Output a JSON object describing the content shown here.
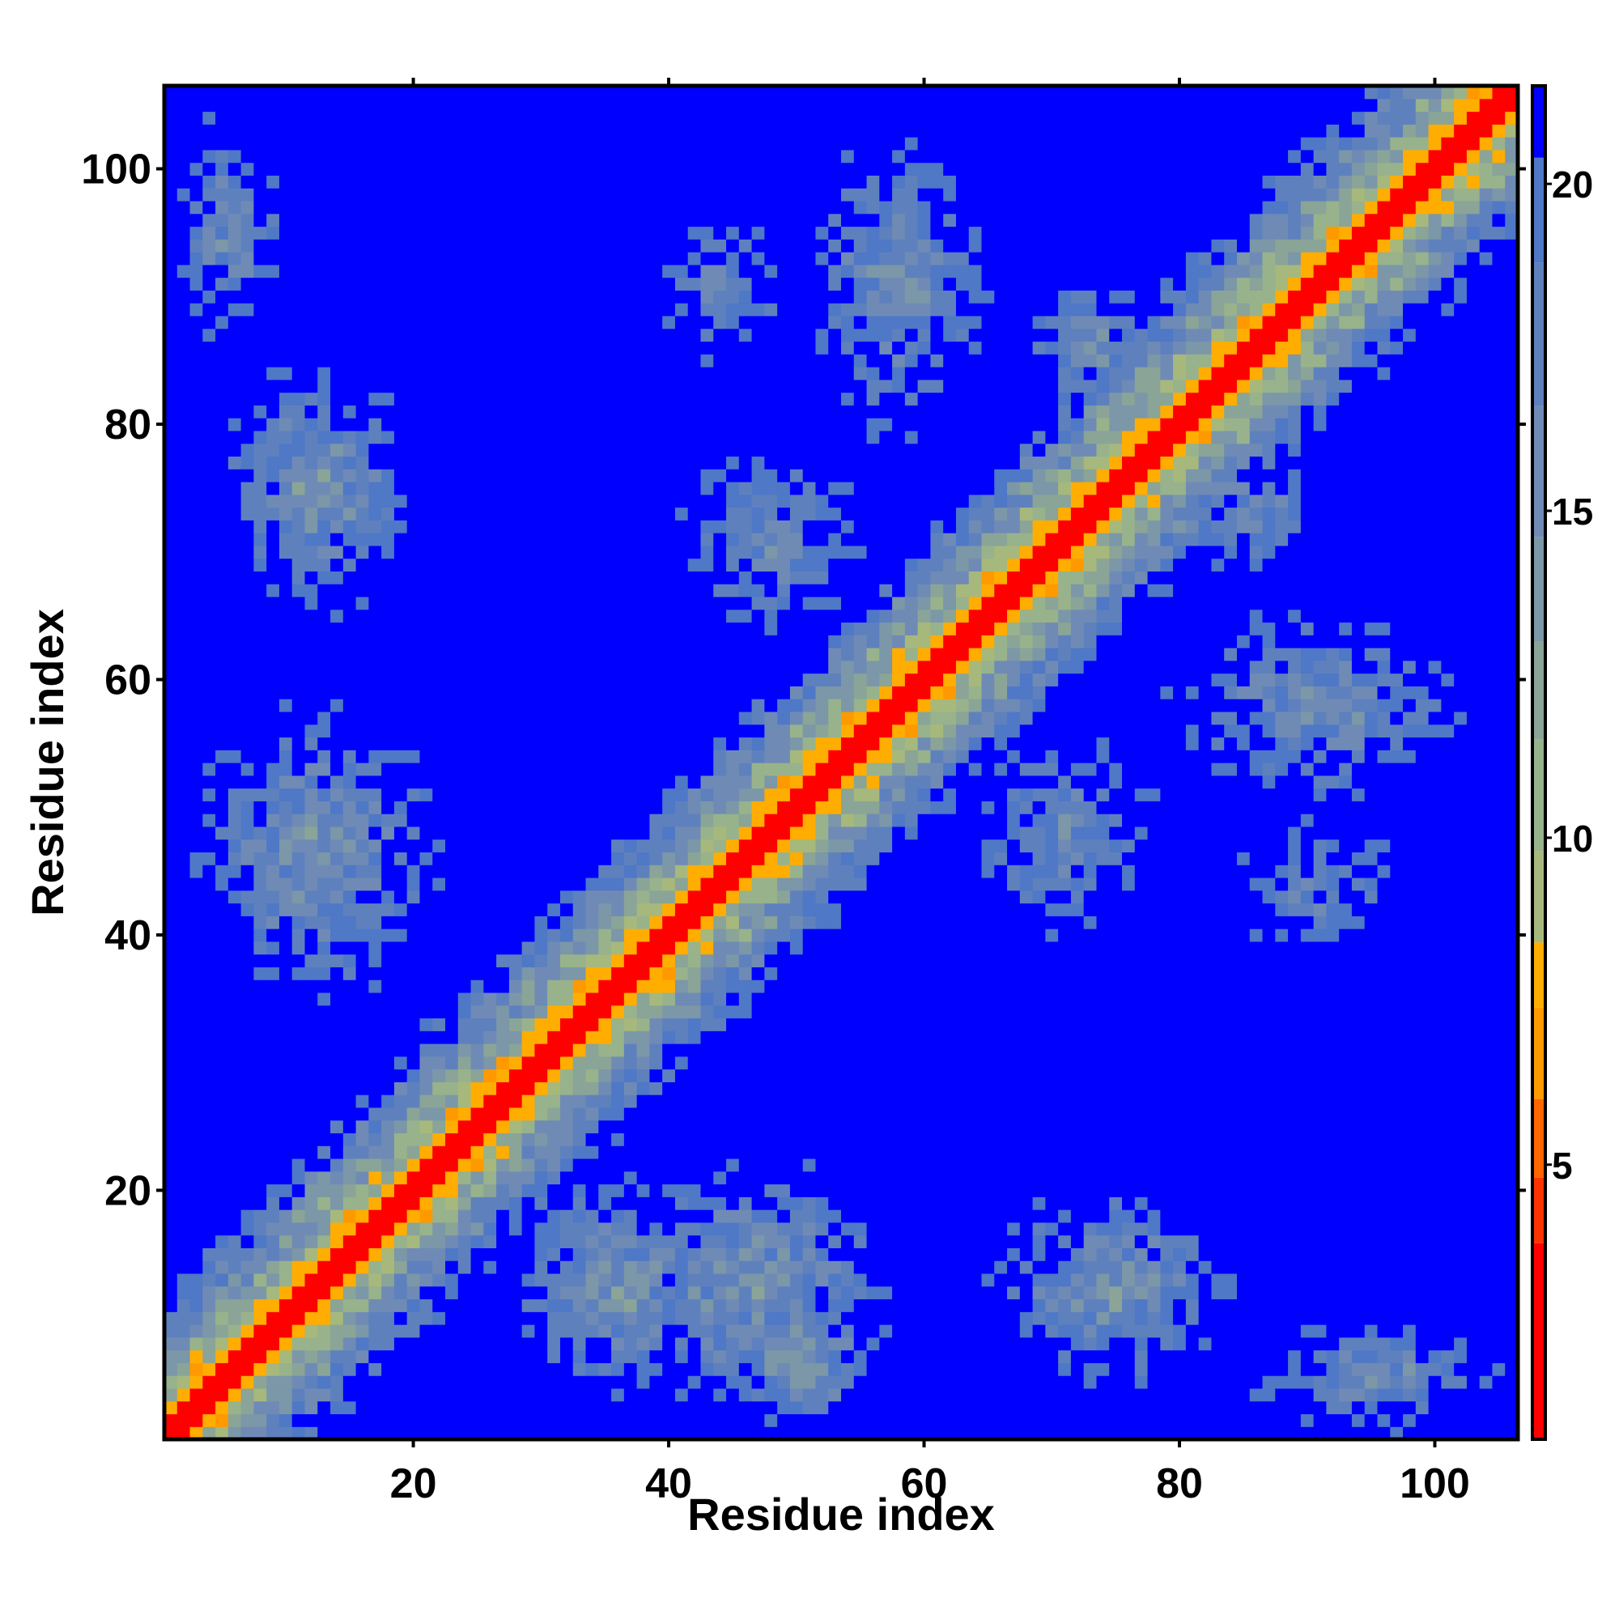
{
  "chart_data": {
    "type": "heatmap",
    "title": "",
    "xlabel": "Residue index",
    "ylabel": "Residue index",
    "n": 106,
    "xlim": [
      0.5,
      106.5
    ],
    "ylim": [
      0.5,
      106.5
    ],
    "x_ticks": [
      20,
      40,
      60,
      80,
      100
    ],
    "y_ticks": [
      20,
      40,
      60,
      80,
      100
    ],
    "x_tick_labels": [
      "20",
      "40",
      "60",
      "80",
      "100"
    ],
    "y_tick_labels": [
      "20",
      "40",
      "60",
      "80",
      "100"
    ],
    "colorbar": {
      "range": [
        0.8,
        21.5
      ],
      "ticks": [
        5,
        10,
        15,
        20
      ],
      "tick_labels": [
        "5",
        "10",
        "15",
        "20"
      ]
    },
    "color_scale": [
      {
        "max": 3.8,
        "color": "#ff0000"
      },
      {
        "max": 4.8,
        "color": "#ff3300"
      },
      {
        "max": 6.0,
        "color": "#ff6600"
      },
      {
        "max": 7.4,
        "color": "#ff9900"
      },
      {
        "max": 8.4,
        "color": "#ffad00"
      },
      {
        "max": 9.8,
        "color": "#a7b87d"
      },
      {
        "max": 11.5,
        "color": "#98b28c"
      },
      {
        "max": 13.0,
        "color": "#8aa497"
      },
      {
        "max": 14.6,
        "color": "#7b97a8"
      },
      {
        "max": 16.6,
        "color": "#6f8bb5"
      },
      {
        "max": 18.8,
        "color": "#5e81be"
      },
      {
        "max": 20.4,
        "color": "#4f78c6"
      },
      {
        "max": 99,
        "color": "#0000ff"
      }
    ],
    "contact_regions": [
      {
        "x": [
          1,
          10
        ],
        "y": [
          85,
          106
        ],
        "d": 15
      },
      {
        "x": [
          5,
          20
        ],
        "y": [
          65,
          85
        ],
        "d": 14
      },
      {
        "x": [
          3,
          22
        ],
        "y": [
          35,
          58
        ],
        "d": 14
      },
      {
        "x": [
          28,
          45
        ],
        "y": [
          3,
          22
        ],
        "d": 14
      },
      {
        "x": [
          44,
          56
        ],
        "y": [
          2,
          12
        ],
        "d": 13
      },
      {
        "x": [
          85,
          106
        ],
        "y": [
          1,
          10
        ],
        "d": 15
      },
      {
        "x": [
          65,
          85
        ],
        "y": [
          5,
          20
        ],
        "d": 14
      },
      {
        "x": [
          35,
          58
        ],
        "y": [
          3,
          22
        ],
        "d": 14
      },
      {
        "x": [
          50,
          66
        ],
        "y": [
          78,
          104
        ],
        "d": 15
      },
      {
        "x": [
          68,
          78
        ],
        "y": [
          80,
          92
        ],
        "d": 15
      },
      {
        "x": [
          78,
          104
        ],
        "y": [
          50,
          66
        ],
        "d": 15
      },
      {
        "x": [
          80,
          92
        ],
        "y": [
          68,
          78
        ],
        "d": 15
      },
      {
        "x": [
          38,
          58
        ],
        "y": [
          62,
          80
        ],
        "d": 16
      },
      {
        "x": [
          62,
          80
        ],
        "y": [
          38,
          58
        ],
        "d": 16
      },
      {
        "x": [
          36,
          52
        ],
        "y": [
          82,
          100
        ],
        "d": 17
      },
      {
        "x": [
          82,
          100
        ],
        "y": [
          36,
          52
        ],
        "d": 17
      }
    ]
  }
}
